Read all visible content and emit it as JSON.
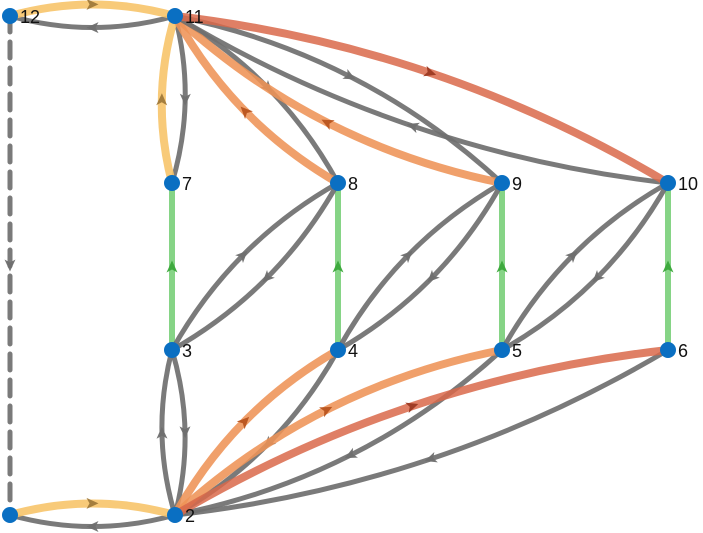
{
  "nodes": [
    {
      "id": "1",
      "label": ""
    },
    {
      "id": "2",
      "label": "2"
    },
    {
      "id": "3",
      "label": "3"
    },
    {
      "id": "4",
      "label": "4"
    },
    {
      "id": "5",
      "label": "5"
    },
    {
      "id": "6",
      "label": "6"
    },
    {
      "id": "7",
      "label": "7"
    },
    {
      "id": "8",
      "label": "8"
    },
    {
      "id": "9",
      "label": "9"
    },
    {
      "id": "10",
      "label": "10"
    },
    {
      "id": "11",
      "label": "11"
    },
    {
      "id": "12",
      "label": "12"
    }
  ],
  "edge_styles": {
    "gray": "#6f6f6f",
    "green": "#7fd27f",
    "orange": "#ee9357",
    "yellow": "#f7c46a",
    "red": "#d9694a",
    "node": "#0a6fc2"
  },
  "edges": [
    {
      "from": "12",
      "to": "1",
      "style": "dashed"
    },
    {
      "from": "11",
      "to": "12",
      "style": "gray"
    },
    {
      "from": "12",
      "to": "11",
      "style": "yellow"
    },
    {
      "from": "2",
      "to": "1",
      "style": "gray"
    },
    {
      "from": "1",
      "to": "2",
      "style": "yellow"
    },
    {
      "from": "3",
      "to": "7",
      "style": "green"
    },
    {
      "from": "4",
      "to": "8",
      "style": "green"
    },
    {
      "from": "5",
      "to": "9",
      "style": "green"
    },
    {
      "from": "6",
      "to": "10",
      "style": "green"
    },
    {
      "from": "11",
      "to": "7",
      "style": "gray"
    },
    {
      "from": "7",
      "to": "11",
      "style": "yellow"
    },
    {
      "from": "3",
      "to": "2",
      "style": "gray"
    },
    {
      "from": "2",
      "to": "3",
      "style": "gray"
    },
    {
      "from": "11",
      "to": "8",
      "style": "gray"
    },
    {
      "from": "8",
      "to": "11",
      "style": "orange"
    },
    {
      "from": "11",
      "to": "9",
      "style": "gray"
    },
    {
      "from": "9",
      "to": "11",
      "style": "orange"
    },
    {
      "from": "10",
      "to": "11",
      "style": "gray"
    },
    {
      "from": "11",
      "to": "10",
      "style": "red"
    },
    {
      "from": "8",
      "to": "3",
      "style": "gray"
    },
    {
      "from": "3",
      "to": "8",
      "style": "gray"
    },
    {
      "from": "9",
      "to": "4",
      "style": "gray"
    },
    {
      "from": "4",
      "to": "9",
      "style": "gray"
    },
    {
      "from": "10",
      "to": "5",
      "style": "gray"
    },
    {
      "from": "5",
      "to": "10",
      "style": "gray"
    },
    {
      "from": "4",
      "to": "2",
      "style": "gray"
    },
    {
      "from": "2",
      "to": "4",
      "style": "orange"
    },
    {
      "from": "5",
      "to": "2",
      "style": "gray"
    },
    {
      "from": "2",
      "to": "5",
      "style": "orange"
    },
    {
      "from": "6",
      "to": "2",
      "style": "gray"
    },
    {
      "from": "2",
      "to": "6",
      "style": "red"
    }
  ]
}
